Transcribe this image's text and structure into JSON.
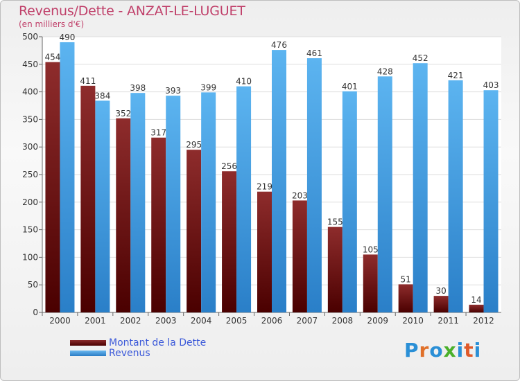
{
  "header": {
    "title": "Revenus/Dette - ANZAT-LE-LUGUET",
    "subtitle": "(en milliers d'€)"
  },
  "brand": {
    "text": "Proxiti"
  },
  "colors": {
    "dette": "#7b1a1a",
    "revenus": "#3a9ee0",
    "label": "#c0406a",
    "legend_text": "#3b59d9"
  },
  "chart_data": {
    "type": "bar",
    "categories": [
      "2000",
      "2001",
      "2002",
      "2003",
      "2004",
      "2005",
      "2006",
      "2007",
      "2008",
      "2009",
      "2010",
      "2011",
      "2012"
    ],
    "series": [
      {
        "name": "Montant de la Dette",
        "values": [
          454,
          411,
          352,
          317,
          295,
          256,
          219,
          203,
          155,
          105,
          51,
          30,
          14
        ]
      },
      {
        "name": "Revenus",
        "values": [
          490,
          384,
          398,
          393,
          399,
          410,
          476,
          461,
          401,
          428,
          452,
          421,
          403
        ]
      }
    ],
    "ylim": [
      0,
      500
    ],
    "yticks": [
      0,
      50,
      100,
      150,
      200,
      250,
      300,
      350,
      400,
      450,
      500
    ],
    "grid": true,
    "legend": "bottom-left"
  }
}
